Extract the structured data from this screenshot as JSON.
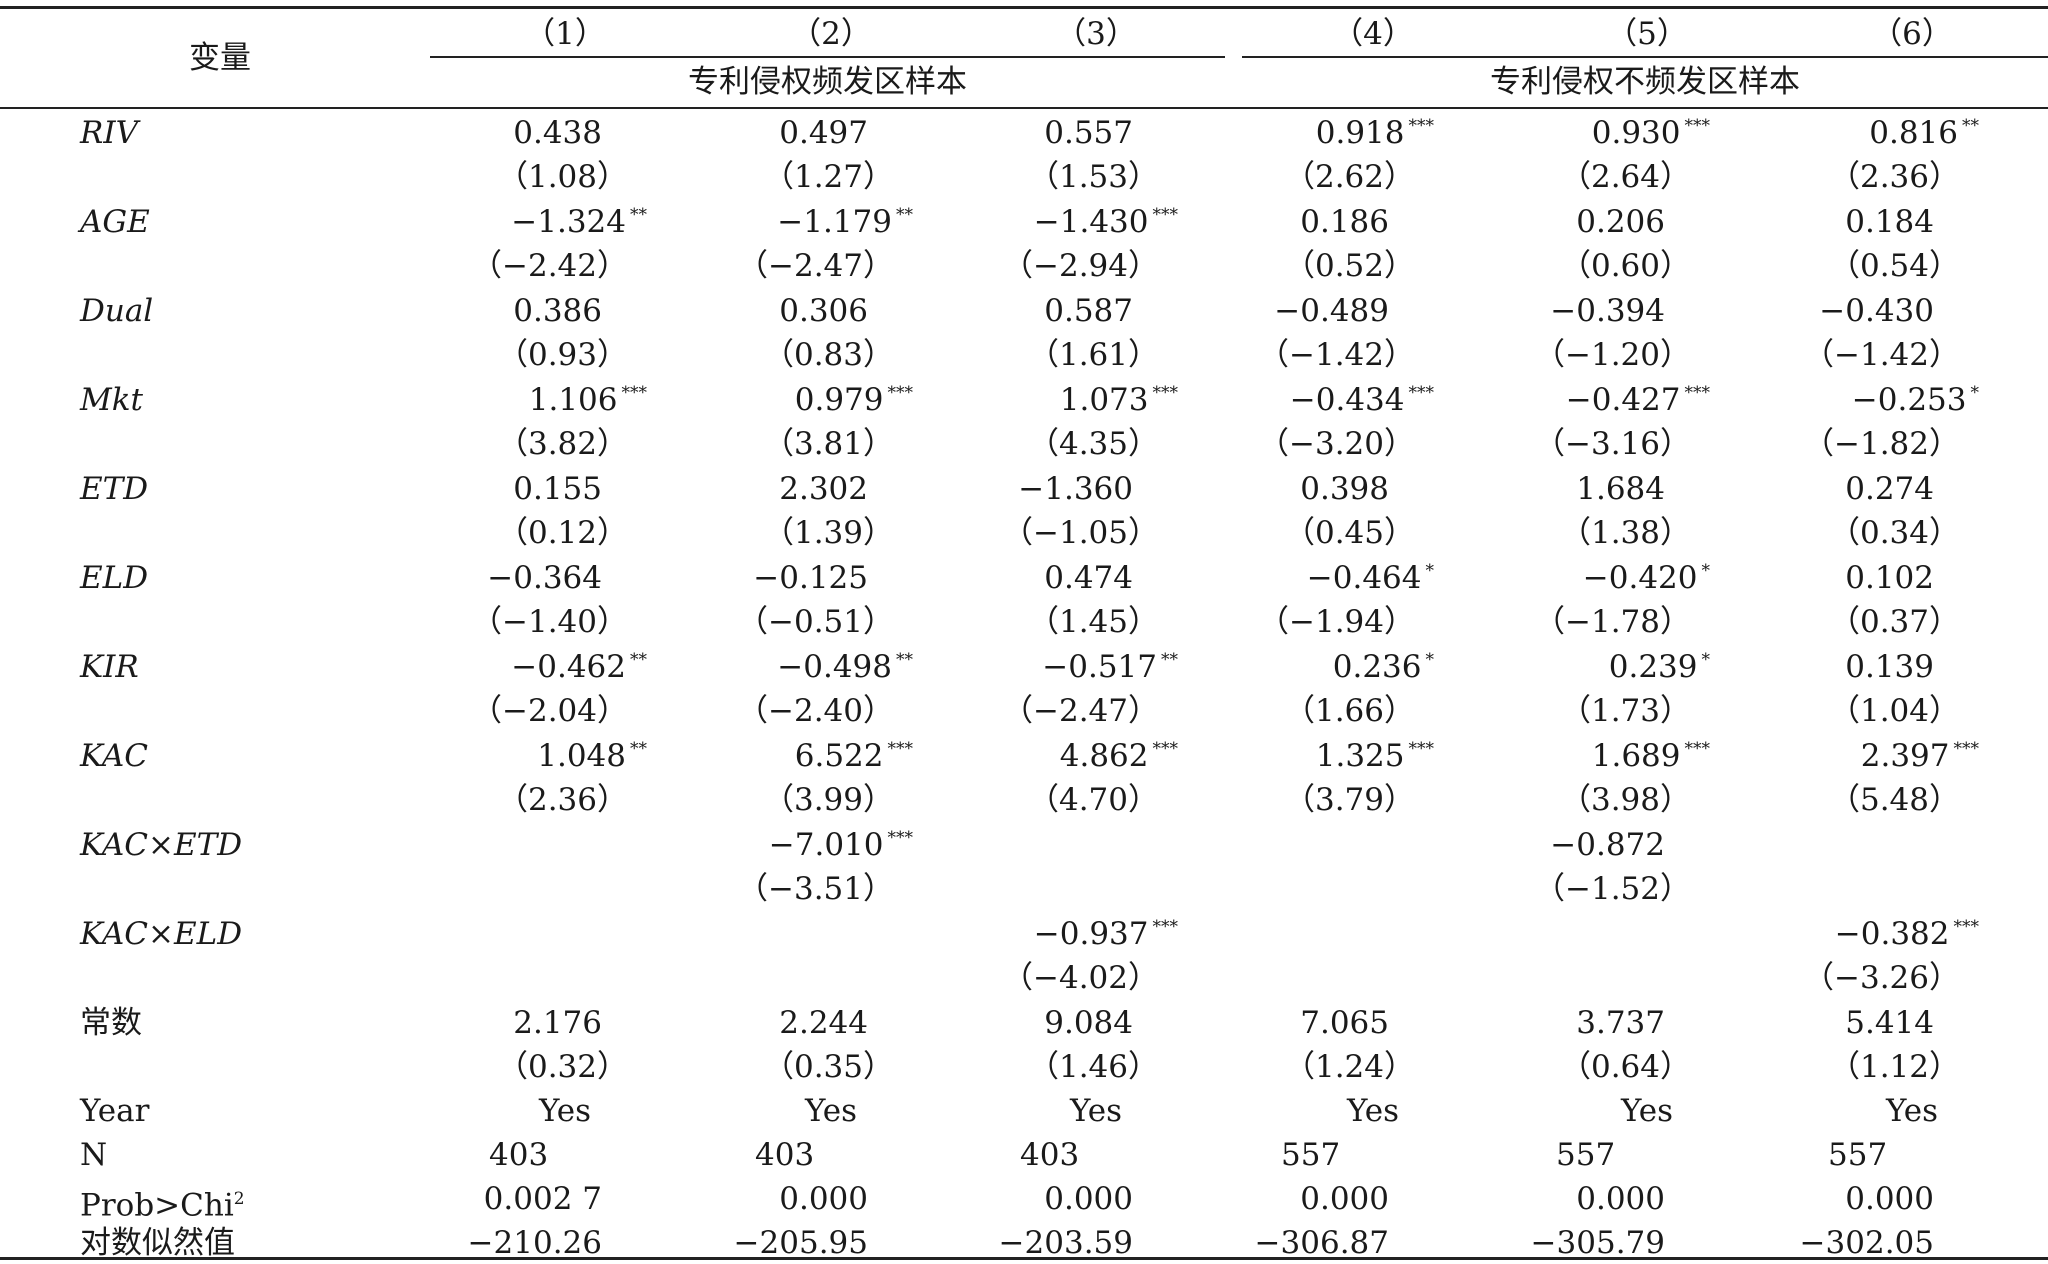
{
  "header": {
    "var_label": "变量",
    "columns": [
      "（1）",
      "（2）",
      "（3）",
      "（4）",
      "（5）",
      "（6）"
    ],
    "group_left": "专利侵权频发区样本",
    "group_right": "专利侵权不频发区样本"
  },
  "rows": [
    {
      "var": "RIV",
      "coef": [
        [
          "0.438",
          ""
        ],
        [
          "0.497",
          ""
        ],
        [
          "0.557",
          ""
        ],
        [
          "0.918",
          "***"
        ],
        [
          "0.930",
          "***"
        ],
        [
          "0.816",
          "**"
        ]
      ],
      "t": [
        "（1.08）",
        "（1.27）",
        "（1.53）",
        "（2.62）",
        "（2.64）",
        "（2.36）"
      ]
    },
    {
      "var": "AGE",
      "coef": [
        [
          "−1.324",
          "**"
        ],
        [
          "−1.179",
          "**"
        ],
        [
          "−1.430",
          "***"
        ],
        [
          "0.186",
          ""
        ],
        [
          "0.206",
          ""
        ],
        [
          "0.184",
          ""
        ]
      ],
      "t": [
        "（−2.42）",
        "（−2.47）",
        "（−2.94）",
        "（0.52）",
        "（0.60）",
        "（0.54）"
      ]
    },
    {
      "var": "Dual",
      "coef": [
        [
          "0.386",
          ""
        ],
        [
          "0.306",
          ""
        ],
        [
          "0.587",
          ""
        ],
        [
          "−0.489",
          ""
        ],
        [
          "−0.394",
          ""
        ],
        [
          "−0.430",
          ""
        ]
      ],
      "t": [
        "（0.93）",
        "（0.83）",
        "（1.61）",
        "（−1.42）",
        "（−1.20）",
        "（−1.42）"
      ]
    },
    {
      "var": "Mkt",
      "coef": [
        [
          "1.106",
          "***"
        ],
        [
          "0.979",
          "***"
        ],
        [
          "1.073",
          "***"
        ],
        [
          "−0.434",
          "***"
        ],
        [
          "−0.427",
          "***"
        ],
        [
          "−0.253",
          "*"
        ]
      ],
      "t": [
        "（3.82）",
        "（3.81）",
        "（4.35）",
        "（−3.20）",
        "（−3.16）",
        "（−1.82）"
      ]
    },
    {
      "var": "ETD",
      "coef": [
        [
          "0.155",
          ""
        ],
        [
          "2.302",
          ""
        ],
        [
          "−1.360",
          ""
        ],
        [
          "0.398",
          ""
        ],
        [
          "1.684",
          ""
        ],
        [
          "0.274",
          ""
        ]
      ],
      "t": [
        "（0.12）",
        "（1.39）",
        "（−1.05）",
        "（0.45）",
        "（1.38）",
        "（0.34）"
      ]
    },
    {
      "var": "ELD",
      "coef": [
        [
          "−0.364",
          ""
        ],
        [
          "−0.125",
          ""
        ],
        [
          "0.474",
          ""
        ],
        [
          "−0.464",
          "*"
        ],
        [
          "−0.420",
          "*"
        ],
        [
          "0.102",
          ""
        ]
      ],
      "t": [
        "（−1.40）",
        "（−0.51）",
        "（1.45）",
        "（−1.94）",
        "（−1.78）",
        "（0.37）"
      ]
    },
    {
      "var": "KIR",
      "coef": [
        [
          "−0.462",
          "**"
        ],
        [
          "−0.498",
          "**"
        ],
        [
          "−0.517",
          "**"
        ],
        [
          "0.236",
          "*"
        ],
        [
          "0.239",
          "*"
        ],
        [
          "0.139",
          ""
        ]
      ],
      "t": [
        "（−2.04）",
        "（−2.40）",
        "（−2.47）",
        "（1.66）",
        "（1.73）",
        "（1.04）"
      ]
    },
    {
      "var": "KAC",
      "coef": [
        [
          "1.048",
          "**"
        ],
        [
          "6.522",
          "***"
        ],
        [
          "4.862",
          "***"
        ],
        [
          "1.325",
          "***"
        ],
        [
          "1.689",
          "***"
        ],
        [
          "2.397",
          "***"
        ]
      ],
      "t": [
        "（2.36）",
        "（3.99）",
        "（4.70）",
        "（3.79）",
        "（3.98）",
        "（5.48）"
      ]
    },
    {
      "var": "KAC×ETD",
      "coef": [
        [
          "",
          ""
        ],
        [
          "−7.010",
          "***"
        ],
        [
          "",
          ""
        ],
        [
          "",
          ""
        ],
        [
          "−0.872",
          ""
        ],
        [
          "",
          ""
        ]
      ],
      "t": [
        "",
        "（−3.51）",
        "",
        "",
        "（−1.52）",
        ""
      ]
    },
    {
      "var": "KAC×ELD",
      "coef": [
        [
          "",
          ""
        ],
        [
          "",
          ""
        ],
        [
          "−0.937",
          "***"
        ],
        [
          "",
          ""
        ],
        [
          "",
          ""
        ],
        [
          "−0.382",
          "***"
        ]
      ],
      "t": [
        "",
        "",
        "（−4.02）",
        "",
        "",
        "（−3.26）"
      ]
    },
    {
      "var": "常数",
      "coef": [
        [
          "2.176",
          ""
        ],
        [
          "2.244",
          ""
        ],
        [
          "9.084",
          ""
        ],
        [
          "7.065",
          ""
        ],
        [
          "3.737",
          ""
        ],
        [
          "5.414",
          ""
        ]
      ],
      "t": [
        "（0.32）",
        "（0.35）",
        "（1.46）",
        "（1.24）",
        "（0.64）",
        "（1.12）"
      ]
    }
  ],
  "year": {
    "label": "Year",
    "values": [
      "Yes",
      "Yes",
      "Yes",
      "Yes",
      "Yes",
      "Yes"
    ]
  },
  "n": {
    "label": "N",
    "values": [
      "403",
      "403",
      "403",
      "557",
      "557",
      "557"
    ]
  },
  "prob": {
    "label": "Prob>Chi",
    "label_sup": "2",
    "values": [
      "0.002 7",
      "0.000",
      "0.000",
      "0.000",
      "0.000",
      "0.000"
    ]
  },
  "loglik": {
    "label": "对数似然值",
    "values": [
      "−210.26",
      "−205.95",
      "−203.59",
      "−306.87",
      "−305.79",
      "−302.05"
    ]
  }
}
